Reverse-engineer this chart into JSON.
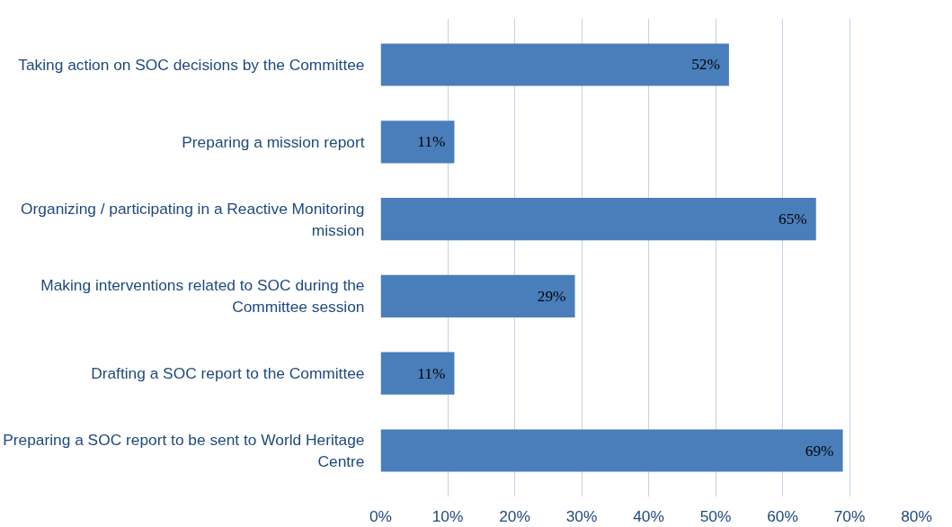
{
  "chart_data": {
    "type": "bar",
    "orientation": "horizontal",
    "categories": [
      "Taking action on SOC decisions by the Committee",
      "Preparing a mission report",
      "Organizing / participating in a Reactive Monitoring mission",
      "Making interventions related to SOC during the Committee session",
      "Drafting a SOC report to the Committee",
      "Preparing a SOC report to be sent to World Heritage Centre"
    ],
    "values": [
      52,
      11,
      65,
      29,
      11,
      69
    ],
    "value_labels": [
      "52%",
      "11%",
      "65%",
      "29%",
      "11%",
      "69%"
    ],
    "color": "#4a7ebb",
    "xlim": [
      0,
      80
    ],
    "xticks": [
      {
        "value": 0,
        "label": "0%"
      },
      {
        "value": 10,
        "label": "10%"
      },
      {
        "value": 20,
        "label": "20%"
      },
      {
        "value": 30,
        "label": "30%"
      },
      {
        "value": 40,
        "label": "40%"
      },
      {
        "value": 50,
        "label": "50%"
      },
      {
        "value": 60,
        "label": "60%"
      },
      {
        "value": 70,
        "label": "70%"
      },
      {
        "value": 80,
        "label": "80%"
      }
    ],
    "grid": "x"
  }
}
